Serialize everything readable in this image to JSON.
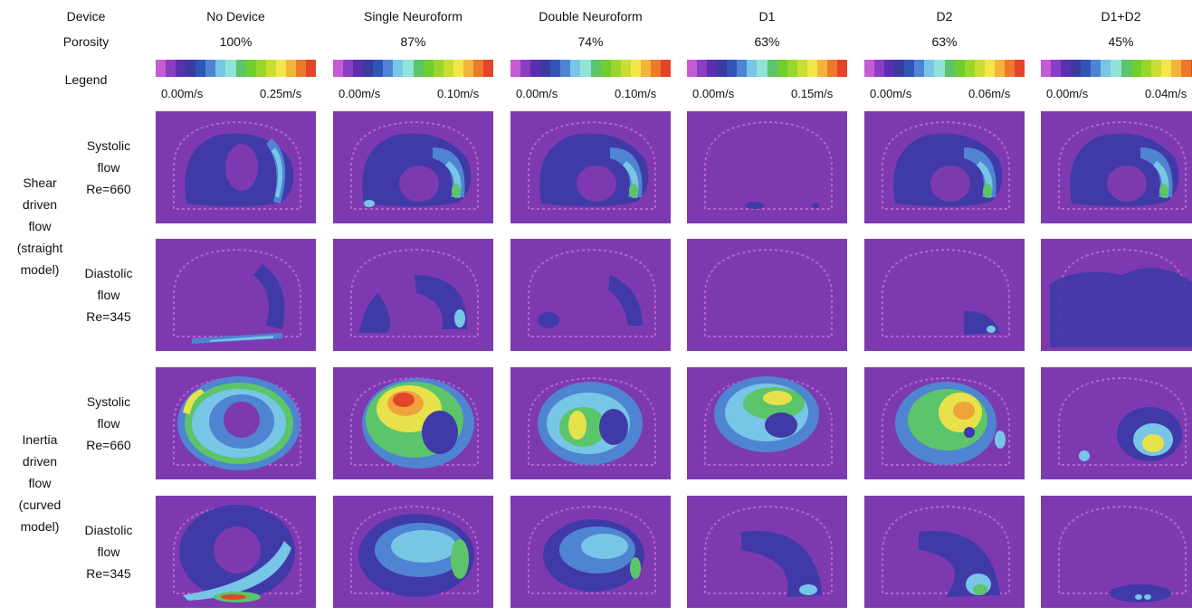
{
  "header": {
    "device_label": "Device",
    "porosity_label": "Porosity",
    "legend_label": "Legend"
  },
  "colorbar": [
    "#c75bd6",
    "#8a3ec2",
    "#5a2fb0",
    "#3b3a9f",
    "#2f55b6",
    "#4f84d3",
    "#78c6e6",
    "#8fe3d8",
    "#5cc46a",
    "#6fcf2f",
    "#9ad62d",
    "#c9dd33",
    "#f2e64a",
    "#f3b43c",
    "#ec7a2d",
    "#e2452a"
  ],
  "columns": [
    {
      "device": "No Device",
      "porosity": "100%",
      "min": "0.00m/s",
      "max": "0.25m/s"
    },
    {
      "device": "Single Neuroform",
      "porosity": "87%",
      "min": "0.00m/s",
      "max": "0.10m/s"
    },
    {
      "device": "Double Neuroform",
      "porosity": "74%",
      "min": "0.00m/s",
      "max": "0.10m/s"
    },
    {
      "device": "D1",
      "porosity": "63%",
      "min": "0.00m/s",
      "max": "0.15m/s"
    },
    {
      "device": "D2",
      "porosity": "63%",
      "min": "0.00m/s",
      "max": "0.06m/s"
    },
    {
      "device": "D1+D2",
      "porosity": "45%",
      "min": "0.00m/s",
      "max": "0.04m/s"
    }
  ],
  "groups": [
    {
      "lines": [
        "Shear",
        "driven",
        "flow",
        "(straight",
        "model)"
      ]
    },
    {
      "lines": [
        "Inertia",
        "driven",
        "flow",
        "(curved",
        "model)"
      ]
    }
  ],
  "rows": [
    {
      "lines": [
        "Systolic",
        "flow",
        "Re=660"
      ]
    },
    {
      "lines": [
        "Diastolic",
        "flow",
        "Re=345"
      ]
    },
    {
      "lines": [
        "Systolic",
        "flow",
        "Re=660"
      ]
    },
    {
      "lines": [
        "Diastolic",
        "flow",
        "Re=345"
      ]
    }
  ],
  "field_colors": {
    "background": "#7d3ab0",
    "low": "#3f3aa8",
    "midlow": "#4f84d3",
    "mid": "#78c6e6",
    "green": "#5cc46a",
    "yellow": "#e8e24a",
    "orange": "#f0a33a",
    "red": "#e2452a",
    "wall": "#c86ad8"
  }
}
